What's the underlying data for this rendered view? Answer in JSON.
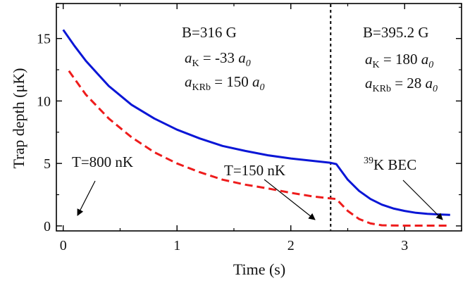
{
  "chart_data": {
    "type": "line",
    "xlabel": "Time (s)",
    "ylabel": "Trap depth (μK)",
    "xlim": [
      -0.06,
      3.5
    ],
    "ylim": [
      -0.4,
      17.8
    ],
    "xticks": [
      0,
      1,
      2,
      3
    ],
    "yticks": [
      0,
      5,
      10,
      15
    ],
    "grid": false,
    "colors": {
      "blue": "#0a16d6",
      "red": "#ee1c1c"
    },
    "series": [
      {
        "color": "#0a16d6",
        "style": "solid",
        "x": [
          0.0,
          0.1,
          0.2,
          0.3,
          0.4,
          0.6,
          0.8,
          1.0,
          1.2,
          1.4,
          1.6,
          1.8,
          2.0,
          2.2,
          2.35,
          2.4,
          2.5,
          2.6,
          2.7,
          2.8,
          2.9,
          3.0,
          3.1,
          3.2,
          3.3,
          3.4
        ],
        "y": [
          15.7,
          14.4,
          13.2,
          12.2,
          11.2,
          9.7,
          8.6,
          7.7,
          7.0,
          6.4,
          6.0,
          5.65,
          5.4,
          5.2,
          5.05,
          4.95,
          3.7,
          2.8,
          2.15,
          1.7,
          1.4,
          1.2,
          1.05,
          0.97,
          0.92,
          0.88
        ]
      },
      {
        "color": "#ee1c1c",
        "style": "dashed",
        "x": [
          0.05,
          0.2,
          0.4,
          0.6,
          0.8,
          1.0,
          1.2,
          1.4,
          1.6,
          1.8,
          2.0,
          2.2,
          2.35,
          2.4,
          2.5,
          2.6,
          2.7,
          2.8,
          3.0,
          3.2,
          3.4
        ],
        "y": [
          12.4,
          10.5,
          8.6,
          7.1,
          5.9,
          5.0,
          4.3,
          3.7,
          3.3,
          3.0,
          2.65,
          2.35,
          2.2,
          2.15,
          1.2,
          0.55,
          0.2,
          0.05,
          0.02,
          0.02,
          0.02
        ]
      }
    ],
    "vline_x": 2.35,
    "annotations": {
      "left_field": "B=316 G",
      "left_aK_sym": "a",
      "left_aK_sub": "K",
      "left_aK_val": " = -33 ",
      "left_aK_unit": "a",
      "left_aK_unit_sub": "0",
      "left_aKRb_sym": "a",
      "left_aKRb_sub": "KRb",
      "left_aKRb_val": " = 150 ",
      "left_aKRb_unit": "a",
      "left_aKRb_unit_sub": "0",
      "right_field": "B=395.2 G",
      "right_aK_sym": "a",
      "right_aK_sub": "K",
      "right_aK_val": " = 180 ",
      "right_aK_unit": "a",
      "right_aK_unit_sub": "0",
      "right_aKRb_sym": "a",
      "right_aKRb_sub": "KRb",
      "right_aKRb_val": " = 28 ",
      "right_aKRb_unit": "a",
      "right_aKRb_unit_sub": "0",
      "temp1": "T=800 nK",
      "temp2": "T=150 nK",
      "bec_sup": "39",
      "bec_text": "K BEC"
    }
  }
}
